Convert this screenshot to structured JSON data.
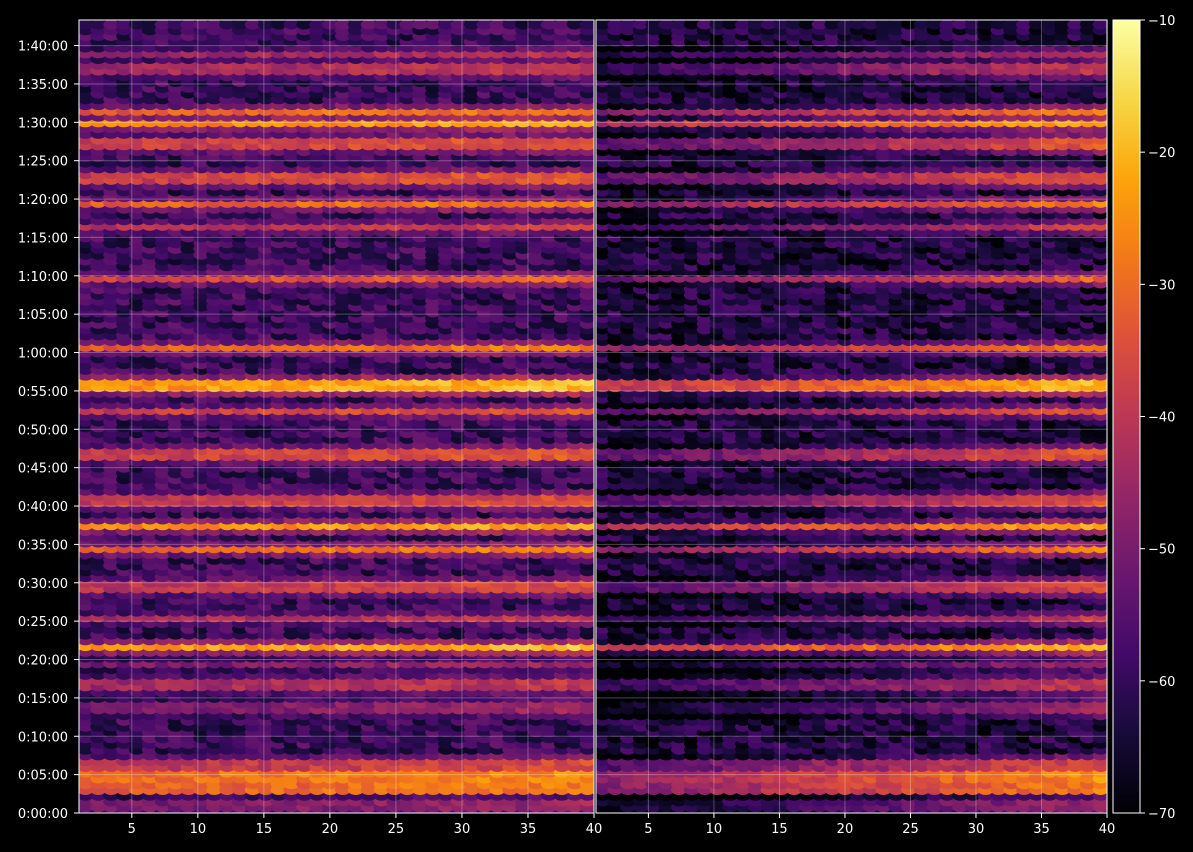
{
  "chart_data": {
    "type": "heatmap",
    "title": "",
    "xlabel": "",
    "ylabel": "",
    "panels": [
      {
        "name": "",
        "xlim": [
          1,
          40
        ],
        "xticks": [
          5,
          10,
          15,
          20,
          25,
          30,
          35,
          40
        ]
      },
      {
        "name": "",
        "xlim": [
          1,
          40
        ],
        "xticks": [
          5,
          10,
          15,
          20,
          25,
          30,
          35,
          40
        ]
      }
    ],
    "y_axis": {
      "ylim_seconds": [
        0,
        6200
      ],
      "tick_labels": [
        "0:00:00",
        "0:05:00",
        "0:10:00",
        "0:15:00",
        "0:20:00",
        "0:25:00",
        "0:30:00",
        "0:35:00",
        "0:40:00",
        "0:45:00",
        "0:50:00",
        "0:55:00",
        "1:00:00",
        "1:05:00",
        "1:10:00",
        "1:15:00",
        "1:20:00",
        "1:25:00",
        "1:30:00",
        "1:35:00",
        "1:40:00"
      ]
    },
    "colorbar": {
      "colormap": "inferno",
      "min": -70,
      "max": -10,
      "ticks": [
        "−10",
        "−20",
        "−30",
        "−40",
        "−50",
        "−60",
        "−70"
      ]
    },
    "grid": true,
    "rows_approx": [
      {
        "time": "0:01:00",
        "level": -48
      },
      {
        "time": "0:03:30",
        "level": -30
      },
      {
        "time": "0:05:00",
        "level": -28
      },
      {
        "time": "0:06:30",
        "level": -38
      },
      {
        "time": "0:14:00",
        "level": -48
      },
      {
        "time": "0:17:00",
        "level": -42
      },
      {
        "time": "0:19:30",
        "level": -48
      },
      {
        "time": "0:21:45",
        "level": -22
      },
      {
        "time": "0:25:30",
        "level": -42
      },
      {
        "time": "0:29:30",
        "level": -38
      },
      {
        "time": "0:34:30",
        "level": -30
      },
      {
        "time": "0:37:30",
        "level": -24
      },
      {
        "time": "0:40:45",
        "level": -38
      },
      {
        "time": "0:46:45",
        "level": -36
      },
      {
        "time": "0:52:30",
        "level": -36
      },
      {
        "time": "0:55:45",
        "level": -22
      },
      {
        "time": "1:00:45",
        "level": -30
      },
      {
        "time": "1:09:45",
        "level": -34
      },
      {
        "time": "1:16:30",
        "level": -40
      },
      {
        "time": "1:19:30",
        "level": -30
      },
      {
        "time": "1:23:00",
        "level": -36
      },
      {
        "time": "1:27:30",
        "level": -36
      },
      {
        "time": "1:30:00",
        "level": -24
      },
      {
        "time": "1:31:30",
        "level": -30
      },
      {
        "time": "1:37:00",
        "level": -42
      },
      {
        "time": "1:39:00",
        "level": -44
      }
    ]
  }
}
